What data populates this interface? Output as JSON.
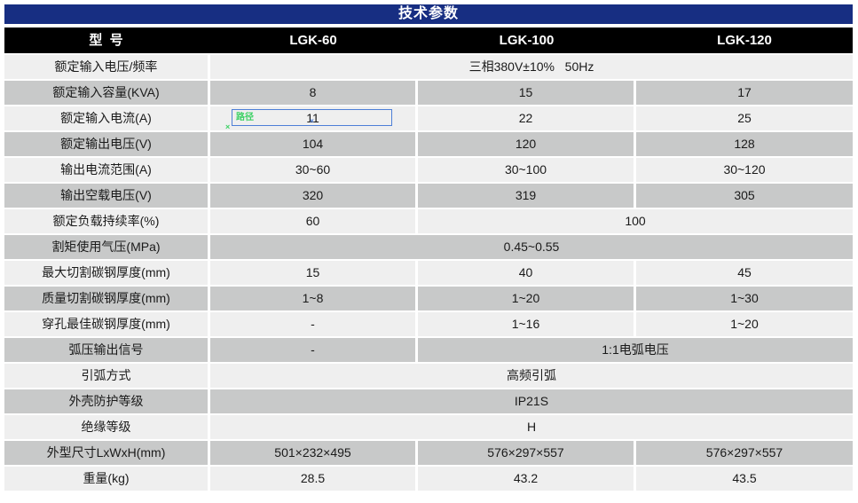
{
  "title": "技术参数",
  "colors": {
    "title_bar_bg": "#172e82",
    "title_text": "#ffffff",
    "header_bg": "#000000",
    "header_text": "#ffffff",
    "row_light": "#efefef",
    "row_dark": "#c8c9c9",
    "sel_blue": "#4d7fd7",
    "sel_green": "#3ed166"
  },
  "table": {
    "header": {
      "model_label": "型  号",
      "models": [
        "LGK-60",
        "LGK-100",
        "LGK-120"
      ]
    },
    "rows": [
      {
        "label": "额定输入电压/频率",
        "cells": [
          {
            "text": "三相380V±10%   50Hz",
            "span": 3
          }
        ]
      },
      {
        "label": "额定输入容量(KVA)",
        "cells": [
          "8",
          "15",
          "17"
        ]
      },
      {
        "label": "额定输入电流(A)",
        "cells": [
          {
            "text": "11",
            "annotated": true
          },
          "22",
          "25"
        ]
      },
      {
        "label": "额定输出电压(V)",
        "cells": [
          "104",
          "120",
          "128"
        ]
      },
      {
        "label": "输出电流范围(A)",
        "cells": [
          "30~60",
          "30~100",
          "30~120"
        ]
      },
      {
        "label": "输出空载电压(V)",
        "cells": [
          "320",
          "319",
          "305"
        ]
      },
      {
        "label": "额定负载持续率(%)",
        "cells": [
          "60",
          {
            "text": "100",
            "span": 2
          }
        ]
      },
      {
        "label": "割矩使用气压(MPa)",
        "cells": [
          {
            "text": "0.45~0.55",
            "span": 3
          }
        ]
      },
      {
        "label": "最大切割碳钢厚度(mm)",
        "cells": [
          "15",
          "40",
          "45"
        ]
      },
      {
        "label": "质量切割碳钢厚度(mm)",
        "cells": [
          "1~8",
          "1~20",
          "1~30"
        ]
      },
      {
        "label": "穿孔最佳碳钢厚度(mm)",
        "cells": [
          "-",
          "1~16",
          "1~20"
        ]
      },
      {
        "label": "弧压输出信号",
        "cells": [
          "-",
          {
            "text": "1:1电弧电压",
            "span": 2
          }
        ]
      },
      {
        "label": "引弧方式",
        "cells": [
          {
            "text": "高频引弧",
            "span": 3
          }
        ]
      },
      {
        "label": "外壳防护等级",
        "cells": [
          {
            "text": "IP21S",
            "span": 3
          }
        ]
      },
      {
        "label": "绝缘等级",
        "cells": [
          {
            "text": "H",
            "span": 3
          }
        ]
      },
      {
        "label": "外型尺寸LxWxH(mm)",
        "cells": [
          "501×232×495",
          "576×297×557",
          "576×297×557"
        ]
      },
      {
        "label": "重量(kg)",
        "cells": [
          "28.5",
          "43.2",
          "43.5"
        ]
      }
    ]
  },
  "annotation": {
    "target": {
      "row": 2,
      "col": 0
    },
    "label": "路径",
    "anchor_mark": "×",
    "caret_mark": "×"
  }
}
